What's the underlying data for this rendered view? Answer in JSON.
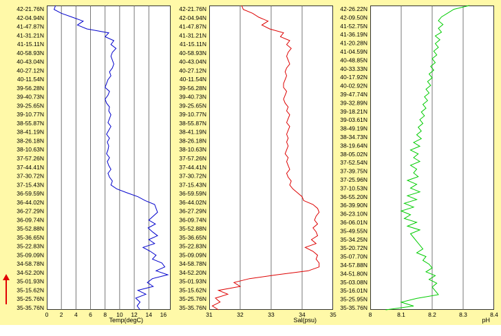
{
  "chart_data": [
    {
      "type": "line",
      "orientation": "vertical-profile",
      "xlabel": "Temp(degC)",
      "xlim": [
        0,
        17
      ],
      "xticks": [
        0,
        2,
        4,
        6,
        8,
        10,
        12,
        14,
        16
      ],
      "color": "#0000cc",
      "y_labels": [
        "42-21.76N",
        "42-04.94N",
        "41-47.87N",
        "41-31.21N",
        "41-15.11N",
        "40-58.93N",
        "40-43.04N",
        "40-27.12N",
        "40-11.54N",
        "39-56.28N",
        "39-40.73N",
        "39-25.65N",
        "39-10.77N",
        "38-55.87N",
        "38-41.19N",
        "38-26.18N",
        "38-10.63N",
        "37-57.26N",
        "37-44.41N",
        "37-30.72N",
        "37-15.43N",
        "36-59.59N",
        "36-44.02N",
        "36-27.29N",
        "36-09.74N",
        "35-52.88N",
        "35-36.65N",
        "35-22.83N",
        "35-09.09N",
        "34-58.78N",
        "34-52.20N",
        "35-01.93N",
        "35-15.62N",
        "35-25.76N",
        "35-35.76N"
      ],
      "values": [
        1.2,
        1.0,
        2.0,
        3.5,
        5.0,
        4.2,
        5.5,
        8.5,
        8.0,
        9.2,
        8.8,
        9.5,
        9.0,
        8.8,
        9.0,
        9.2,
        9.0,
        8.6,
        8.8,
        8.4,
        8.2,
        8.0,
        8.6,
        8.4,
        8.0,
        8.2,
        8.6,
        8.5,
        8.8,
        8.6,
        8.4,
        8.8,
        8.5,
        8.2,
        8.6,
        8.3,
        8.5,
        8.4,
        8.2,
        8.6,
        8.3,
        8.5,
        8.8,
        8.4,
        8.6,
        9.0,
        8.8,
        9.6,
        11.0,
        12.5,
        13.5,
        14.8,
        15.0,
        15.2,
        14.6,
        14.0,
        14.9,
        13.9,
        14.5,
        15.2,
        14.0,
        14.8,
        13.2,
        14.2,
        15.0,
        14.5,
        15.8,
        16.2,
        15.0,
        16.6,
        14.5,
        13.8,
        14.6,
        12.5,
        13.6,
        12.2,
        12.8,
        12.4,
        12.8
      ]
    },
    {
      "type": "line",
      "orientation": "vertical-profile",
      "xlabel": "Sal(psu)",
      "xlim": [
        31,
        35
      ],
      "xticks": [
        31,
        32,
        33,
        34,
        35
      ],
      "color": "#dd0000",
      "y_labels": [
        "42-21.76N",
        "42-04.94N",
        "41-47.87N",
        "41-31.21N",
        "41-15.11N",
        "40-58.93N",
        "40-43.04N",
        "40-27.12N",
        "40-11.54N",
        "39-56.28N",
        "39-40.73N",
        "39-25.65N",
        "39-10.77N",
        "38-55.87N",
        "38-41.19N",
        "38-26.18N",
        "38-10.63N",
        "37-57.26N",
        "37-44.41N",
        "37-30.72N",
        "37-15.43N",
        "36-59.59N",
        "36-44.02N",
        "36-27.29N",
        "36-09.74N",
        "35-52.88N",
        "35-36.65N",
        "35-22.83N",
        "35-09.09N",
        "34-58.78N",
        "34-52.20N",
        "35-01.93N",
        "35-15.62N",
        "35-25.76N",
        "35-35.76N"
      ],
      "values": [
        32.05,
        32.1,
        32.4,
        32.6,
        32.9,
        32.7,
        32.95,
        33.4,
        33.3,
        33.6,
        33.5,
        33.65,
        33.55,
        33.5,
        33.55,
        33.6,
        33.5,
        33.45,
        33.5,
        33.45,
        33.4,
        33.4,
        33.5,
        33.45,
        33.4,
        33.45,
        33.55,
        33.5,
        33.6,
        33.55,
        33.5,
        33.6,
        33.55,
        33.5,
        33.55,
        33.5,
        33.55,
        33.5,
        33.45,
        33.55,
        33.5,
        33.55,
        33.6,
        33.5,
        33.55,
        33.65,
        33.6,
        33.7,
        33.85,
        34.0,
        34.05,
        34.35,
        34.5,
        34.55,
        34.45,
        34.4,
        34.5,
        34.35,
        34.45,
        34.5,
        34.3,
        34.45,
        34.1,
        34.35,
        34.5,
        34.45,
        34.55,
        34.55,
        34.2,
        33.2,
        32.3,
        31.8,
        32.0,
        31.3,
        31.6,
        31.2,
        31.35,
        31.1,
        31.3
      ]
    },
    {
      "type": "line",
      "orientation": "vertical-profile",
      "xlabel": "pH",
      "xlim": [
        8.0,
        8.4
      ],
      "xticks": [
        8,
        8.1,
        8.2,
        8.3,
        8.4
      ],
      "color": "#00cc00",
      "y_labels": [
        "42-26.22N",
        "42-09.50N",
        "41-52.75N",
        "41-36.19N",
        "41-20.28N",
        "41-04.59N",
        "40-48.85N",
        "40-33.33N",
        "40-17.92N",
        "40-02.92N",
        "39-47.74N",
        "39-32.89N",
        "39-18.21N",
        "39-03.61N",
        "38-49.19N",
        "38-34.73N",
        "38-19.64N",
        "38-05.02N",
        "37-52.54N",
        "37-39.75N",
        "37-25.96N",
        "37-10.53N",
        "36-55.20N",
        "36-39.90N",
        "36-23.10N",
        "36-06.01N",
        "35-49.55N",
        "35-34.25N",
        "35-20.72N",
        "35-07.70N",
        "34-57.88N",
        "34-51.80N",
        "35-03.08N",
        "35-16.01N",
        "35-25.95N",
        "35-35.76N"
      ],
      "values": [
        8.32,
        8.27,
        8.25,
        8.23,
        8.22,
        8.235,
        8.22,
        8.23,
        8.21,
        8.225,
        8.21,
        8.22,
        8.205,
        8.215,
        8.2,
        8.21,
        8.195,
        8.205,
        8.19,
        8.2,
        8.185,
        8.195,
        8.18,
        8.19,
        8.175,
        8.185,
        8.17,
        8.18,
        8.165,
        8.175,
        8.16,
        8.17,
        8.155,
        8.165,
        8.15,
        8.165,
        8.14,
        8.16,
        8.13,
        8.155,
        8.14,
        8.16,
        8.13,
        8.15,
        8.14,
        8.155,
        8.12,
        8.15,
        8.13,
        8.16,
        8.12,
        8.15,
        8.11,
        8.14,
        8.1,
        8.13,
        8.11,
        8.15,
        8.12,
        8.16,
        8.13,
        8.14,
        8.15,
        8.16,
        8.17,
        8.15,
        8.18,
        8.17,
        8.19,
        8.2,
        8.18,
        8.21,
        8.19,
        8.215,
        8.2,
        8.21,
        8.22,
        8.15,
        8.1,
        8.14,
        8.05
      ]
    }
  ]
}
